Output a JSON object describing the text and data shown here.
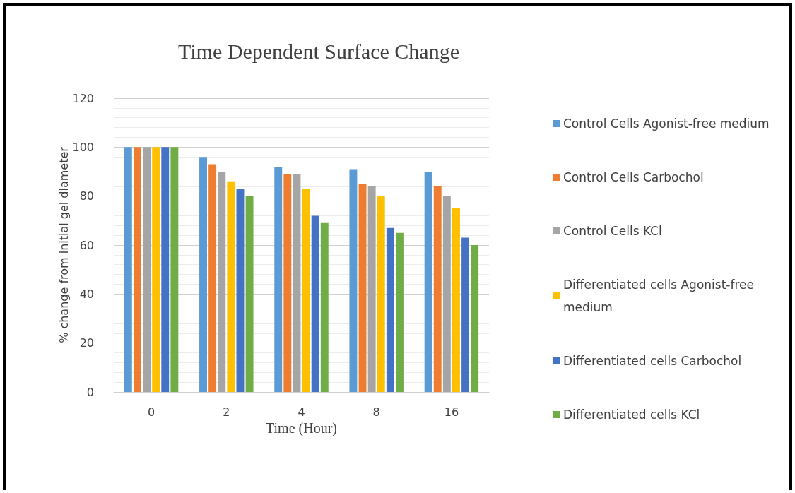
{
  "chart_data": {
    "type": "bar",
    "title": "Time Dependent Surface Change",
    "xlabel": "Time (Hour)",
    "ylabel": "% change from initial gel diameter",
    "categories": [
      "0",
      "2",
      "4",
      "8",
      "16"
    ],
    "series": [
      {
        "name": "Control Cells Agonist-free medium",
        "color": "#5b9bd5",
        "values": [
          100,
          96,
          92,
          91,
          90
        ]
      },
      {
        "name": "Control Cells Carbochol",
        "color": "#ed7d31",
        "values": [
          100,
          93,
          89,
          85,
          84
        ]
      },
      {
        "name": "Control Cells KCl",
        "color": "#a5a5a5",
        "values": [
          100,
          90,
          89,
          84,
          80
        ]
      },
      {
        "name": "Differentiated cells Agonist-free medium",
        "color": "#ffc000",
        "values": [
          100,
          86,
          83,
          80,
          75
        ]
      },
      {
        "name": "Differentiated cells Carbochol",
        "color": "#4472c4",
        "values": [
          100,
          83,
          72,
          67,
          63
        ]
      },
      {
        "name": "Differentiated cells KCl",
        "color": "#70ad47",
        "values": [
          100,
          80,
          69,
          65,
          60
        ]
      }
    ],
    "ylim": [
      0,
      120
    ],
    "yticks": [
      0,
      20,
      40,
      60,
      80,
      100,
      120
    ],
    "grid": true,
    "legend": "right"
  }
}
